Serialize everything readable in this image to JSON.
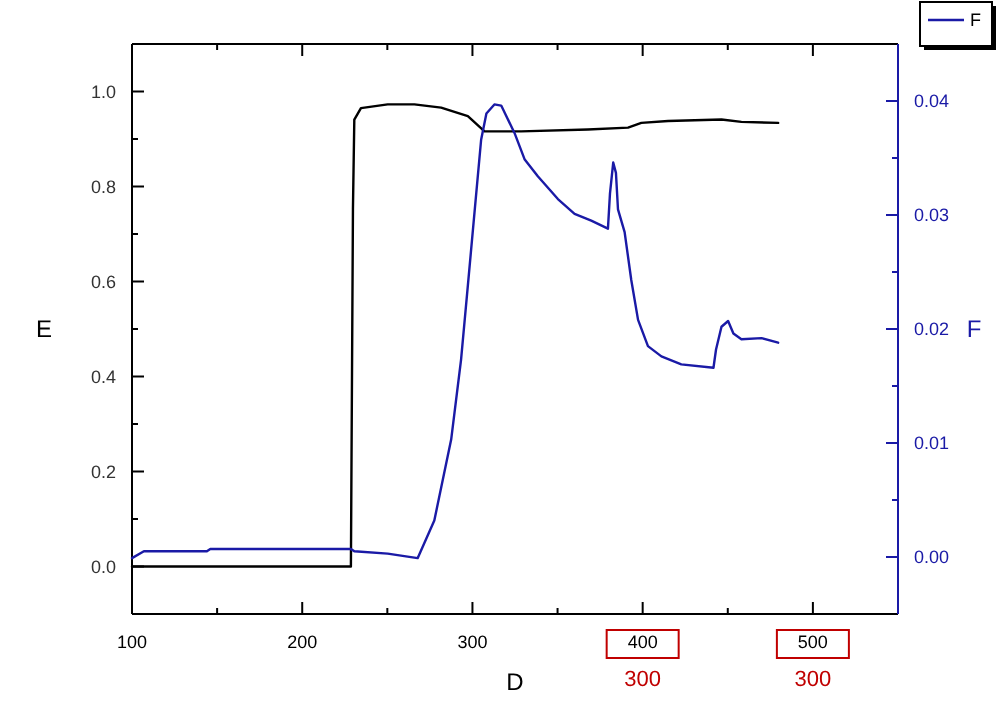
{
  "chart_data": {
    "type": "line",
    "xlabel": "D",
    "ylabel": "E",
    "y2label": "F",
    "xlim": [
      100,
      550
    ],
    "xticks": [
      100,
      {
        "value": 150,
        "label": null
      },
      200,
      {
        "value": 250,
        "label": null
      },
      300,
      {
        "value": 350,
        "label": null
      },
      400,
      {
        "value": 450,
        "label": null
      },
      500
    ],
    "ylim": [
      -0.1,
      1.1
    ],
    "yticks": [
      {
        "value": 0,
        "label": "0.0"
      },
      {
        "value": 0.1,
        "label": null
      },
      0.2,
      {
        "value": 0.3,
        "label": null
      },
      0.4,
      {
        "value": 0.5,
        "label": null
      },
      0.6,
      {
        "value": 0.7,
        "label": null
      },
      0.8,
      {
        "value": 0.9,
        "label": null
      },
      {
        "value": 1,
        "label": "1.0"
      }
    ],
    "y2lim": [
      -0.005,
      0.045
    ],
    "y2ticks": [
      {
        "value": 0,
        "label": "0.00"
      },
      {
        "value": 0.005,
        "label": null
      },
      0.01,
      {
        "value": 0.015,
        "label": null
      },
      0.02,
      {
        "value": 0.025,
        "label": null
      },
      0.03,
      {
        "value": 0.035,
        "label": null
      },
      0.04
    ],
    "series": [
      {
        "color": "#000000",
        "x": [
          100,
          228.6,
          229.8,
          230.6,
          234.5,
          250.2,
          265.9,
          281.6,
          297.3,
          307.1,
          328.6,
          367.8,
          391.4,
          399.2,
          414.9,
          446.3,
          458,
          479.6
        ],
        "values": [
          0,
          0,
          0.752,
          0.941,
          0.965,
          0.973,
          0.973,
          0.966,
          0.948,
          0.916,
          0.916,
          0.92,
          0.924,
          0.934,
          0.938,
          0.941,
          0.936,
          0.934
        ]
      },
      {
        "name": "F",
        "color": "#1a1aa6",
        "axis": "y2",
        "x": [
          100,
          107,
          144,
          146,
          228.6,
          230.6,
          250.2,
          267.8,
          277.6,
          287.5,
          293.3,
          297.3,
          301.2,
          305.1,
          308.2,
          312.9,
          316.9,
          324.7,
          330.6,
          338.4,
          350.2,
          360,
          369.8,
          379.6,
          380.8,
          382.7,
          384.3,
          385.5,
          389.4,
          393.3,
          397.3,
          403.1,
          411,
          422.7,
          441.6,
          443.1,
          446.3,
          450.2,
          453.3,
          458,
          469.8,
          479.6
        ],
        "values": [
          -0.0001,
          0.0005,
          0.0005,
          0.0007,
          0.0007,
          0.0005,
          0.0003,
          -0.0001,
          0.0032,
          0.0103,
          0.0173,
          0.0238,
          0.0302,
          0.0366,
          0.0389,
          0.0397,
          0.0396,
          0.0372,
          0.0349,
          0.0334,
          0.0314,
          0.0301,
          0.0295,
          0.0288,
          0.0319,
          0.0346,
          0.0337,
          0.0305,
          0.0285,
          0.0243,
          0.0208,
          0.0185,
          0.0176,
          0.0169,
          0.0166,
          0.0182,
          0.0202,
          0.0207,
          0.0196,
          0.0191,
          0.0192,
          0.0188
        ]
      }
    ],
    "annotations": [
      "300",
      "300"
    ],
    "legend": "top right",
    "marker": "none",
    "line_style": "solid",
    "grid": false
  }
}
